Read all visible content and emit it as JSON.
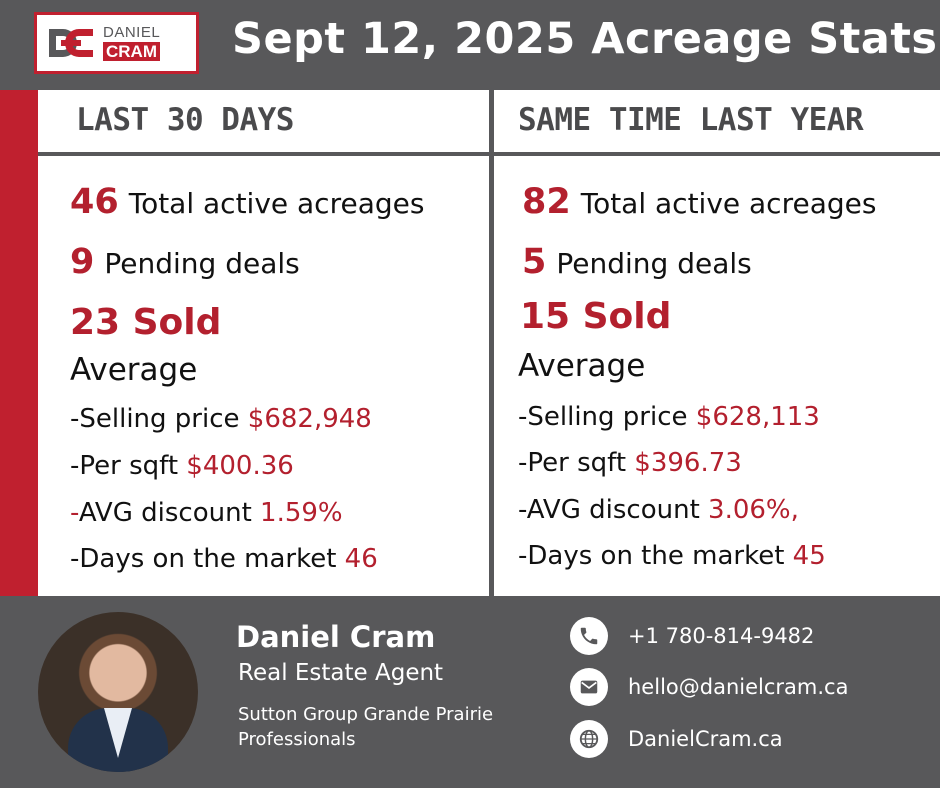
{
  "header": {
    "logo_top": "DANIEL",
    "logo_bottom": "CRAM",
    "title": "Sept 12, 2025 Acreage Stats"
  },
  "left": {
    "heading": "LAST 30 DAYS",
    "active_count": "46",
    "active_label": "Total active acreages",
    "pending_count": "9",
    "pending_label": "Pending deals",
    "sold": "23 Sold",
    "average_label": "Average",
    "selling_price_label": "-Selling price",
    "selling_price": "$682,948",
    "per_sqft_label": "-Per sqft",
    "per_sqft": "$400.36",
    "discount_dash": "-",
    "discount_label": "AVG discount",
    "discount": "1.59%",
    "days_label": "-Days on the market",
    "days": "46"
  },
  "right": {
    "heading": "SAME TIME LAST YEAR",
    "active_count": "82",
    "active_label": "Total active acreages",
    "pending_count": "5",
    "pending_label": "Pending deals",
    "sold": "15 Sold",
    "average_label": "Average",
    "selling_price_label": "-Selling price",
    "selling_price": "$628,113",
    "per_sqft_label": "-Per sqft",
    "per_sqft": "$396.73",
    "discount_label": "-AVG discount",
    "discount": "3.06%,",
    "days_label": "-Days on the market",
    "days": "45"
  },
  "footer": {
    "name": "Daniel Cram",
    "role": "Real Estate Agent",
    "company_line1": "Sutton Group Grande Prairie",
    "company_line2": "Professionals",
    "phone": "+1 780-814-9482",
    "email": "hello@danielcram.ca",
    "website": "DanielCram.ca",
    "icons": [
      "phone-icon",
      "mail-icon",
      "globe-icon"
    ]
  },
  "colors": {
    "brand_red": "#c0202f",
    "value_red": "#b3202e",
    "gray": "#58585a"
  }
}
